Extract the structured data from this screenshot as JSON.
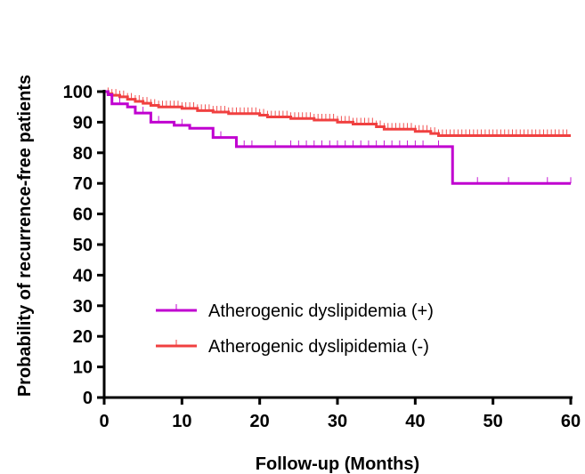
{
  "chart_data": {
    "type": "line",
    "xlabel": "Follow-up (Months)",
    "ylabel": "Probability of recurrence-free patients",
    "xlim": [
      0,
      60
    ],
    "ylim": [
      0,
      100
    ],
    "xticks": [
      0,
      10,
      20,
      30,
      40,
      50,
      60
    ],
    "yticks": [
      0,
      10,
      20,
      30,
      40,
      50,
      60,
      70,
      80,
      90,
      100
    ],
    "grid": false,
    "legend_position": "lower-left",
    "series": [
      {
        "name": "Atherogenic dyslipidemia (+)",
        "color": "#c000d0",
        "step": [
          [
            0,
            100
          ],
          [
            0.5,
            99
          ],
          [
            1,
            96
          ],
          [
            3,
            95
          ],
          [
            4,
            93
          ],
          [
            6,
            90
          ],
          [
            9,
            89
          ],
          [
            11,
            88
          ],
          [
            14,
            85
          ],
          [
            17,
            82
          ],
          [
            44.8,
            82
          ],
          [
            44.8,
            70
          ],
          [
            60,
            70
          ]
        ],
        "censor_x": [
          1,
          2,
          5,
          7,
          10,
          14,
          15,
          18,
          19,
          22,
          24,
          25,
          26,
          27,
          28,
          29,
          30,
          31,
          32,
          33,
          34,
          35,
          36,
          37,
          38,
          39,
          40,
          41,
          43,
          48,
          52,
          57,
          60
        ]
      },
      {
        "name": "Atherogenic dyslipidemia (-)",
        "color": "#f04040",
        "step": [
          [
            0,
            100
          ],
          [
            0.5,
            99.3
          ],
          [
            1,
            98.8
          ],
          [
            2,
            98.3
          ],
          [
            3,
            97.5
          ],
          [
            4,
            96.8
          ],
          [
            5,
            96.2
          ],
          [
            6,
            95.5
          ],
          [
            7,
            95
          ],
          [
            10,
            94.5
          ],
          [
            12,
            93.8
          ],
          [
            14,
            93.3
          ],
          [
            16,
            92.8
          ],
          [
            20,
            92.3
          ],
          [
            21,
            91.7
          ],
          [
            24,
            91.2
          ],
          [
            27,
            90.7
          ],
          [
            30,
            90
          ],
          [
            32,
            89.4
          ],
          [
            35,
            88.5
          ],
          [
            36,
            87.7
          ],
          [
            40,
            87
          ],
          [
            42,
            86.3
          ],
          [
            43,
            85.6
          ],
          [
            60,
            85.6
          ]
        ],
        "censor_x": [
          0.5,
          1,
          1.5,
          2,
          2.5,
          3,
          3.5,
          4,
          4.5,
          5,
          5.5,
          6,
          6.5,
          7,
          7.5,
          8,
          8.5,
          9,
          9.5,
          10,
          10.5,
          11,
          11.5,
          12,
          12.5,
          13,
          13.5,
          14,
          14.5,
          15,
          15.5,
          16,
          16.5,
          17,
          17.5,
          18,
          18.5,
          19,
          19.5,
          20,
          20.5,
          21,
          21.5,
          22,
          22.5,
          23,
          23.5,
          24,
          24.5,
          25,
          25.5,
          26,
          26.5,
          27,
          27.5,
          28,
          28.5,
          29,
          29.5,
          30,
          30.5,
          31,
          31.5,
          32,
          32.5,
          33,
          33.5,
          34,
          34.5,
          35,
          35.5,
          36,
          36.5,
          37,
          37.5,
          38,
          38.5,
          39,
          39.5,
          40,
          40.5,
          41,
          41.5,
          42,
          42.5,
          43,
          43.5,
          44,
          44.5,
          45,
          45.5,
          46,
          46.5,
          47,
          47.5,
          48,
          48.5,
          49,
          49.5,
          50,
          50.5,
          51,
          51.5,
          52,
          52.5,
          53,
          53.5,
          54,
          54.5,
          55,
          55.5,
          56,
          56.5,
          57,
          57.5,
          58,
          58.5,
          59,
          59.5
        ]
      }
    ]
  }
}
